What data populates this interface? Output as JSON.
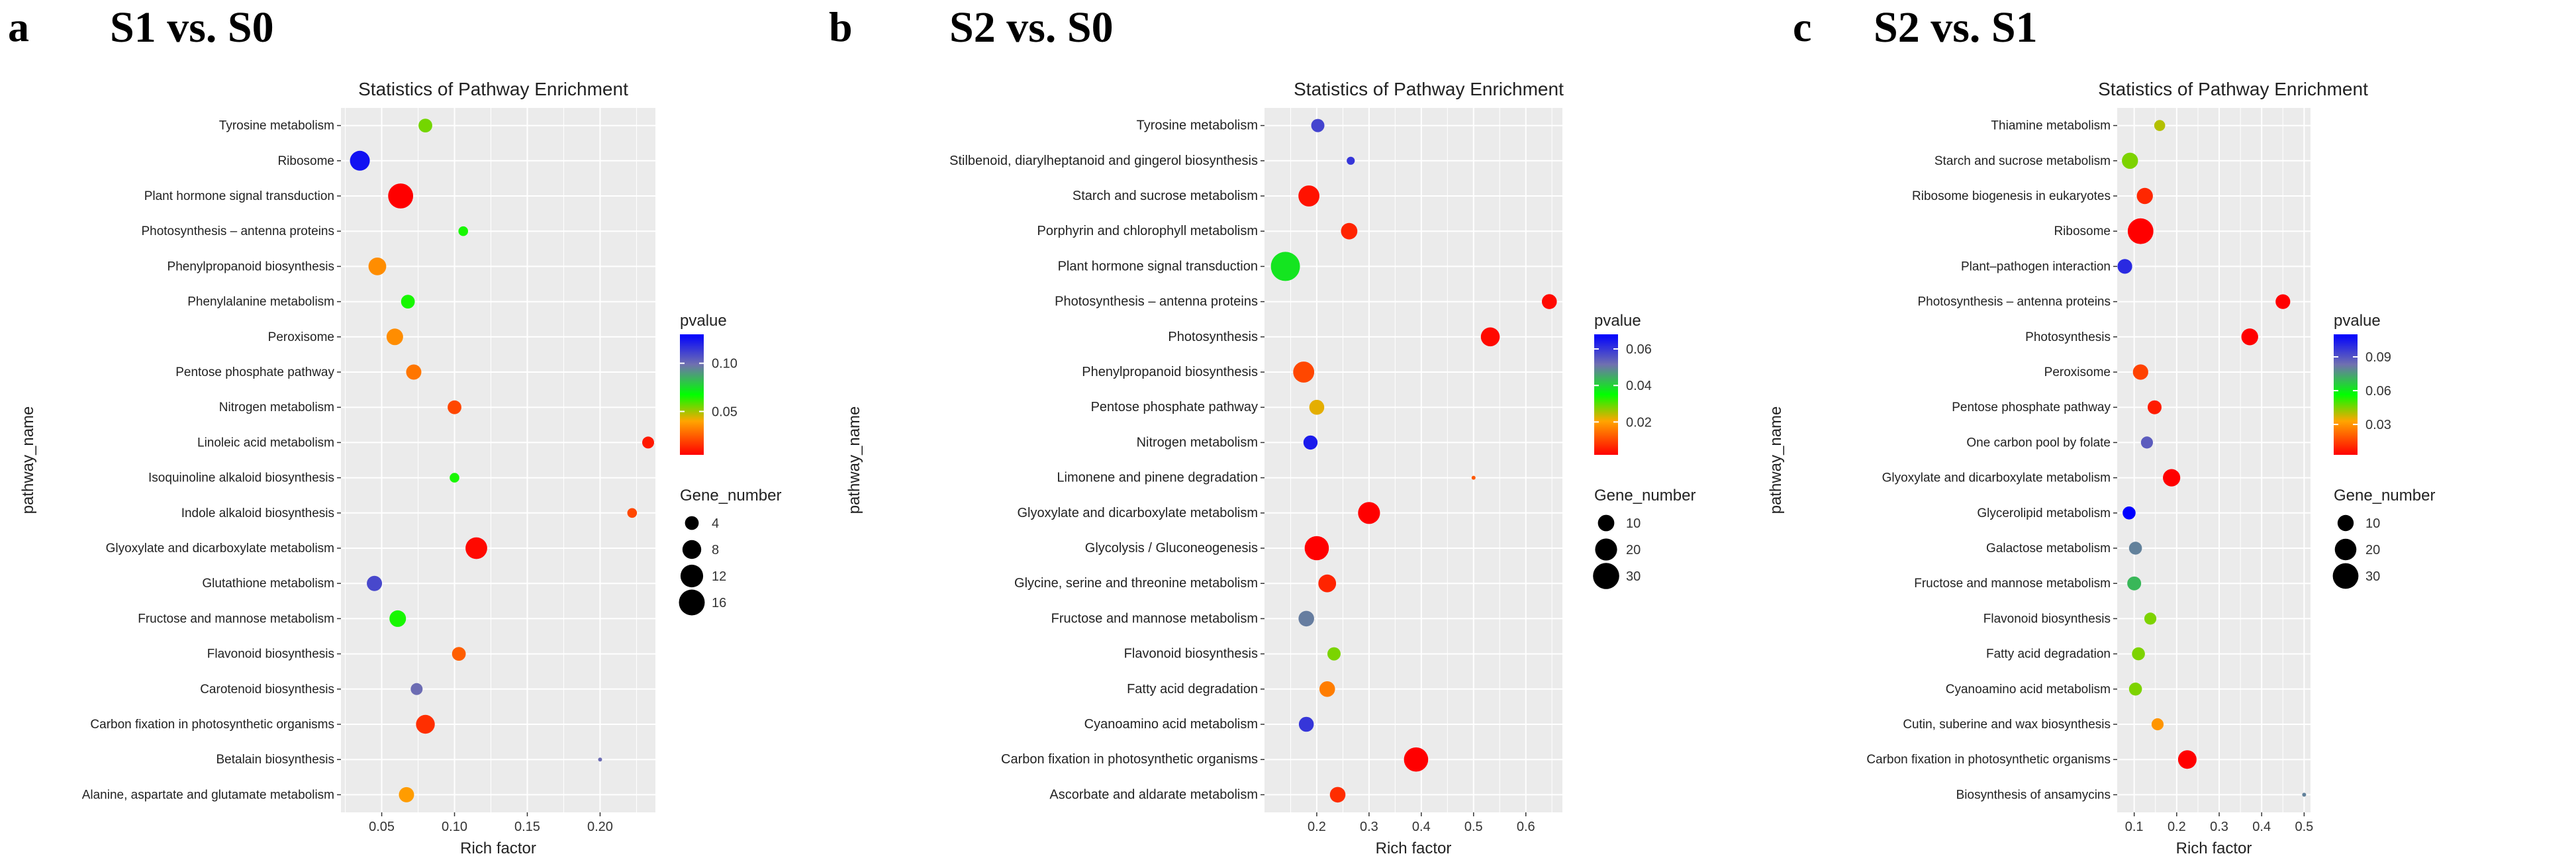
{
  "figure": {
    "panels": [
      {
        "letter": "a",
        "heading": "S1 vs. S0"
      },
      {
        "letter": "b",
        "heading": "S2 vs. S0"
      },
      {
        "letter": "c",
        "heading": "S2 vs. S1"
      }
    ]
  },
  "chart_data": [
    {
      "type": "scatter",
      "title": "Statistics of Pathway Enrichment",
      "xlabel": "Rich factor",
      "ylabel": "pathway_name",
      "xlim": [
        0.022,
        0.238
      ],
      "xticks": [
        0.05,
        0.1,
        0.15,
        0.2
      ],
      "xtick_labels": [
        "0.05",
        "0.10",
        "0.15",
        "0.20"
      ],
      "color_legend": {
        "title": "pvalue",
        "range": [
          0.005,
          0.13
        ],
        "ticks": [
          0.05,
          0.1
        ],
        "tick_labels": [
          "0.05",
          "0.10"
        ],
        "low_color": "#ff0000",
        "high_color": "#0000ff"
      },
      "size_legend": {
        "title": "Gene_number",
        "values": [
          4,
          8,
          12,
          16
        ],
        "labels": [
          "4",
          "8",
          "12",
          "16"
        ],
        "min": 1,
        "max": 17
      },
      "pathways": [
        "Tyrosine metabolism",
        "Ribosome",
        "Plant hormone signal transduction",
        "Photosynthesis – antenna proteins",
        "Phenylpropanoid biosynthesis",
        "Phenylalanine metabolism",
        "Peroxisome",
        "Pentose phosphate pathway",
        "Nitrogen metabolism",
        "Linoleic acid metabolism",
        "Isoquinoline alkaloid biosynthesis",
        "Indole alkaloid biosynthesis",
        "Glyoxylate and dicarboxylate metabolism",
        "Glutathione metabolism",
        "Fructose and mannose metabolism",
        "Flavonoid biosynthesis",
        "Carotenoid biosynthesis",
        "Carbon fixation in photosynthetic organisms",
        "Betalain biosynthesis",
        "Alanine, aspartate and glutamate metabolism"
      ],
      "rich_factor": [
        0.08,
        0.035,
        0.063,
        0.106,
        0.047,
        0.068,
        0.059,
        0.072,
        0.1,
        0.233,
        0.1,
        0.222,
        0.115,
        0.045,
        0.061,
        0.103,
        0.074,
        0.08,
        0.2,
        0.067
      ],
      "gene_number": [
        4,
        9,
        15,
        2,
        7,
        4,
        6,
        5,
        4,
        3,
        2,
        2,
        11,
        5,
        6,
        4,
        3,
        8,
        1,
        5
      ],
      "pvalue": [
        0.055,
        0.125,
        0.005,
        0.065,
        0.035,
        0.065,
        0.035,
        0.03,
        0.02,
        0.01,
        0.065,
        0.02,
        0.007,
        0.11,
        0.065,
        0.025,
        0.1,
        0.015,
        0.1,
        0.038
      ]
    },
    {
      "type": "scatter",
      "title": "Statistics of Pathway Enrichment",
      "xlabel": "Rich factor",
      "ylabel": "pathway_name",
      "xlim": [
        0.1,
        0.67
      ],
      "xticks": [
        0.2,
        0.3,
        0.4,
        0.5,
        0.6
      ],
      "xtick_labels": [
        "0.2",
        "0.3",
        "0.4",
        "0.5",
        "0.6"
      ],
      "color_legend": {
        "title": "pvalue",
        "range": [
          0.002,
          0.068
        ],
        "ticks": [
          0.02,
          0.04,
          0.06
        ],
        "tick_labels": [
          "0.02",
          "0.04",
          "0.06"
        ],
        "low_color": "#ff0000",
        "high_color": "#0000ff"
      },
      "size_legend": {
        "title": "Gene_number",
        "values": [
          10,
          20,
          30
        ],
        "labels": [
          "10",
          "20",
          "30"
        ],
        "min": 1,
        "max": 38
      },
      "pathways": [
        "Tyrosine metabolism",
        "Stilbenoid, diarylheptanoid and gingerol biosynthesis",
        "Starch and sucrose metabolism",
        "Porphyrin and chlorophyll metabolism",
        "Plant hormone signal transduction",
        "Photosynthesis – antenna proteins",
        "Photosynthesis",
        "Phenylpropanoid biosynthesis",
        "Pentose phosphate pathway",
        "Nitrogen metabolism",
        "Limonene and pinene degradation",
        "Glyoxylate and dicarboxylate metabolism",
        "Glycolysis / Gluconeogenesis",
        "Glycine, serine and threonine metabolism",
        "Fructose and mannose metabolism",
        "Flavonoid biosynthesis",
        "Fatty acid degradation",
        "Cyanoamino acid metabolism",
        "Carbon fixation in photosynthetic organisms",
        "Ascorbate and aldarate metabolism"
      ],
      "rich_factor": [
        0.202,
        0.265,
        0.185,
        0.262,
        0.14,
        0.645,
        0.532,
        0.175,
        0.2,
        0.188,
        0.5,
        0.3,
        0.2,
        0.22,
        0.18,
        0.233,
        0.22,
        0.18,
        0.39,
        0.24
      ],
      "gene_number": [
        6,
        2,
        18,
        10,
        38,
        8,
        14,
        18,
        8,
        7,
        1,
        20,
        25,
        12,
        9,
        6,
        9,
        8,
        25,
        9
      ],
      "pvalue": [
        0.058,
        0.06,
        0.004,
        0.006,
        0.038,
        0.003,
        0.003,
        0.01,
        0.022,
        0.064,
        0.012,
        0.002,
        0.002,
        0.006,
        0.05,
        0.028,
        0.016,
        0.06,
        0.002,
        0.007
      ]
    },
    {
      "type": "scatter",
      "title": "Statistics of Pathway Enrichment",
      "xlabel": "Rich factor",
      "ylabel": "pathway_name",
      "xlim": [
        0.06,
        0.515
      ],
      "xticks": [
        0.1,
        0.2,
        0.3,
        0.4,
        0.5
      ],
      "xtick_labels": [
        "0.1",
        "0.2",
        "0.3",
        "0.4",
        "0.5"
      ],
      "color_legend": {
        "title": "pvalue",
        "range": [
          0.003,
          0.11
        ],
        "ticks": [
          0.03,
          0.06,
          0.09
        ],
        "tick_labels": [
          "0.03",
          "0.06",
          "0.09"
        ],
        "low_color": "#ff0000",
        "high_color": "#0000ff"
      },
      "size_legend": {
        "title": "Gene_number",
        "values": [
          10,
          20,
          30
        ],
        "labels": [
          "10",
          "20",
          "30"
        ],
        "min": 1,
        "max": 32
      },
      "pathways": [
        "Thiamine metabolism",
        "Starch and sucrose metabolism",
        "Ribosome biogenesis in eukaryotes",
        "Ribosome",
        "Plant–pathogen interaction",
        "Photosynthesis – antenna proteins",
        "Photosynthesis",
        "Peroxisome",
        "Pentose phosphate pathway",
        "One carbon pool by folate",
        "Glyoxylate and dicarboxylate metabolism",
        "Glycerolipid metabolism",
        "Galactose metabolism",
        "Fructose and mannose metabolism",
        "Flavonoid biosynthesis",
        "Fatty acid degradation",
        "Cyanoamino acid metabolism",
        "Cutin, suberine and wax biosynthesis",
        "Carbon fixation in photosynthetic organisms",
        "Biosynthesis of ansamycins"
      ],
      "rich_factor": [
        0.16,
        0.09,
        0.125,
        0.115,
        0.078,
        0.45,
        0.372,
        0.115,
        0.148,
        0.13,
        0.188,
        0.088,
        0.103,
        0.1,
        0.138,
        0.11,
        0.103,
        0.155,
        0.225,
        0.5
      ],
      "gene_number": [
        4,
        10,
        10,
        30,
        8,
        8,
        11,
        9,
        7,
        5,
        12,
        6,
        6,
        7,
        5,
        6,
        6,
        5,
        14,
        1
      ],
      "pvalue": [
        0.04,
        0.045,
        0.01,
        0.003,
        0.1,
        0.003,
        0.003,
        0.015,
        0.008,
        0.088,
        0.003,
        0.11,
        0.08,
        0.07,
        0.045,
        0.045,
        0.045,
        0.03,
        0.003,
        0.08
      ]
    }
  ]
}
